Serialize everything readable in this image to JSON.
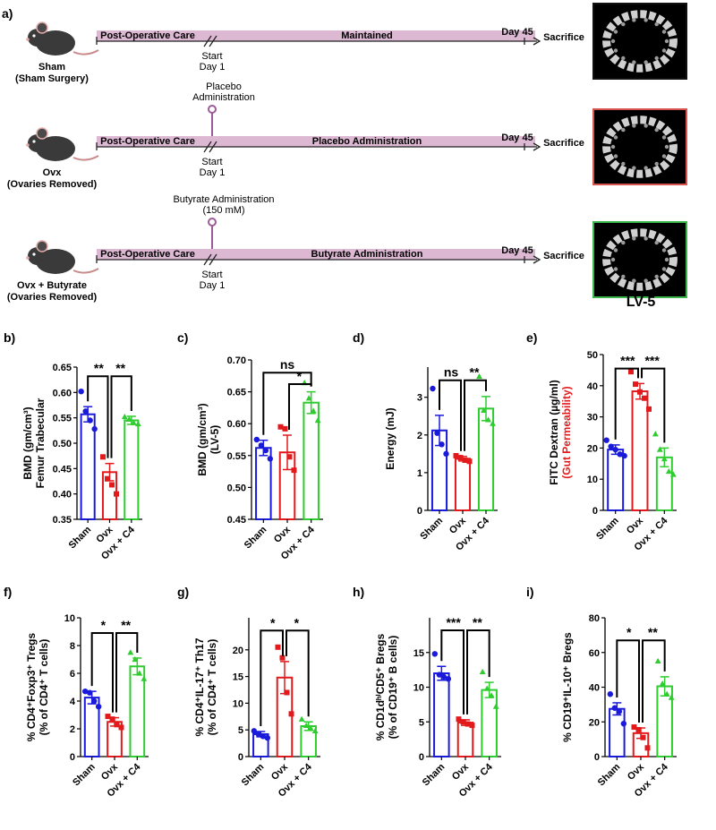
{
  "figure": {
    "panel_labels": [
      "a)",
      "b)",
      "c)",
      "d)",
      "e)",
      "f)",
      "g)",
      "h)",
      "i)"
    ],
    "timeline": {
      "rows": [
        {
          "group": "Sham",
          "group_sub": "(Sham Surgery)",
          "post_op": "Post-Operative Care",
          "treatment": "Maintained",
          "day_end": "Day 45",
          "sacrifice": "Sacrifice",
          "start": "Start",
          "start_day": "Day 1",
          "admin_top": "",
          "admin_sub": "",
          "frame_color": "#111111"
        },
        {
          "group": "Ovx",
          "group_sub": "(Ovaries Removed)",
          "post_op": "Post-Operative Care",
          "treatment": "Placebo Administration",
          "day_end": "Day 45",
          "sacrifice": "Sacrifice",
          "start": "Start",
          "start_day": "Day 1",
          "admin_top": "Placebo",
          "admin_sub": "Administration",
          "frame_color": "#d9534f"
        },
        {
          "group": "Ovx + Butyrate",
          "group_sub": "(Ovaries Removed)",
          "post_op": "Post-Operative Care",
          "treatment": "Butyrate Administration",
          "day_end": "Day 45",
          "sacrifice": "Sacrifice",
          "start": "Start",
          "start_day": "Day 1",
          "admin_top": "Butyrate Administration",
          "admin_sub": "(150 mM)",
          "frame_color": "#3cb54a"
        }
      ],
      "bone_label": "LV-5",
      "bar_color": "#dcb8d3",
      "marker_color": "#9b5c96"
    },
    "colors": {
      "Sham": "#1a1adb",
      "Ovx": "#e31a1c",
      "Ovx + C4": "#2ecc2e"
    }
  },
  "chart_data": [
    {
      "panel": "b)",
      "type": "bar",
      "categories": [
        "Sham",
        "Ovx",
        "Ovx + C4"
      ],
      "ylabel_lines": [
        "BMD (gm/cm³)",
        "Femur Trabecular"
      ],
      "ylim": [
        0.35,
        0.65
      ],
      "yticks": [
        "0.35",
        "0.40",
        "0.45",
        "0.50",
        "0.55",
        "0.60",
        "0.65"
      ],
      "values": [
        0.557,
        0.443,
        0.545
      ],
      "errors": [
        0.015,
        0.017,
        0.008
      ],
      "points": [
        [
          0.602,
          0.563,
          0.545,
          0.528
        ],
        [
          0.473,
          0.43,
          0.418,
          0.4
        ],
        [
          0.552,
          0.547,
          0.54,
          0.538
        ]
      ],
      "brackets": [
        {
          "from": 0,
          "to": 1,
          "y": 0.632,
          "label": "**"
        },
        {
          "from": 1,
          "to": 2,
          "y": 0.632,
          "label": "**"
        }
      ]
    },
    {
      "panel": "c)",
      "type": "bar",
      "categories": [
        "Sham",
        "Ovx",
        "Ovx + C4"
      ],
      "ylabel_lines": [
        "BMD (gm/cm³)",
        "(LV-5)"
      ],
      "ylim": [
        0.45,
        0.7
      ],
      "yticks": [
        "0.45",
        "0.50",
        "0.55",
        "0.60",
        "0.65",
        "0.70"
      ],
      "values": [
        0.562,
        0.555,
        0.633
      ],
      "errors": [
        0.012,
        0.027,
        0.017
      ],
      "points": [
        [
          0.575,
          0.566,
          0.558,
          0.545
        ],
        [
          0.595,
          0.592,
          0.548,
          0.527
        ],
        [
          0.664,
          0.64,
          0.62,
          0.605
        ]
      ],
      "brackets": [
        {
          "from": 0,
          "to": 2,
          "y": 0.68,
          "label": "ns"
        },
        {
          "from": 1,
          "to": 2,
          "y": 0.662,
          "label": "*"
        }
      ]
    },
    {
      "panel": "d)",
      "type": "bar",
      "categories": [
        "Sham",
        "Ovx",
        "Ovx + C4"
      ],
      "ylabel_lines": [
        "Energy (mJ)"
      ],
      "ylim": [
        0,
        3.8
      ],
      "yticks": [
        "0",
        "1",
        "2",
        "3"
      ],
      "values": [
        2.12,
        1.37,
        2.7
      ],
      "errors": [
        0.4,
        0.06,
        0.32
      ],
      "points": [
        [
          3.23,
          2.05,
          1.75,
          1.5
        ],
        [
          1.45,
          1.4,
          1.33,
          1.3
        ],
        [
          3.55,
          2.65,
          2.4,
          2.3
        ]
      ],
      "brackets": [
        {
          "from": 0,
          "to": 1,
          "y": 3.45,
          "label": "ns"
        },
        {
          "from": 1,
          "to": 2,
          "y": 3.45,
          "label": "**"
        }
      ]
    },
    {
      "panel": "e)",
      "type": "bar",
      "categories": [
        "Sham",
        "Ovx",
        "Ovx + C4"
      ],
      "ylabel_lines": [
        "FITC Dextran (µg/ml)"
      ],
      "ylabel2": "(Gut Permeability)",
      "ylabel2_color": "#e31a1c",
      "ylim": [
        0,
        50
      ],
      "yticks": [
        "0",
        "10",
        "20",
        "30",
        "40",
        "50"
      ],
      "values": [
        19.5,
        38.2,
        17.0
      ],
      "errors": [
        1.5,
        2.5,
        3.0
      ],
      "points": [
        [
          22.5,
          20.5,
          19.5,
          18.0,
          17.5
        ],
        [
          44.5,
          40.5,
          38.0,
          36.0,
          32.5
        ],
        [
          24.5,
          19.5,
          16.5,
          12.5,
          11.5
        ]
      ],
      "brackets": [
        {
          "from": 0,
          "to": 1,
          "y": 45.5,
          "label": "***"
        },
        {
          "from": 1,
          "to": 2,
          "y": 45.5,
          "label": "***"
        }
      ]
    },
    {
      "panel": "f)",
      "type": "bar",
      "categories": [
        "Sham",
        "Ovx",
        "Ovx + C4"
      ],
      "ylabel_lines": [
        "% CD4⁺Foxp3⁺ Tregs",
        "(% of CD4⁺ T cells)"
      ],
      "ylim": [
        0,
        10
      ],
      "yticks": [
        "0",
        "2",
        "4",
        "6",
        "8",
        "10"
      ],
      "values": [
        4.25,
        2.5,
        6.5
      ],
      "errors": [
        0.45,
        0.3,
        0.6
      ],
      "points": [
        [
          4.7,
          4.6,
          4.0,
          3.6
        ],
        [
          2.9,
          2.7,
          2.3,
          2.1
        ],
        [
          7.5,
          7.0,
          6.0,
          5.6
        ]
      ],
      "brackets": [
        {
          "from": 0,
          "to": 1,
          "y": 8.9,
          "label": "*"
        },
        {
          "from": 1,
          "to": 2,
          "y": 8.9,
          "label": "**"
        }
      ]
    },
    {
      "panel": "g)",
      "type": "bar",
      "categories": [
        "Sham",
        "Ovx",
        "Ovx + C4"
      ],
      "ylabel_lines": [
        "% CD4⁺IL-17⁺ Th17",
        "(% of CD4⁺ T cells)"
      ],
      "ylim": [
        0,
        26
      ],
      "yticks": [
        "0",
        "5",
        "10",
        "15",
        "20"
      ],
      "values": [
        4.2,
        14.8,
        5.7
      ],
      "errors": [
        0.5,
        3.0,
        0.8
      ],
      "points": [
        [
          4.8,
          4.2,
          3.8,
          3.5
        ],
        [
          20.5,
          18.5,
          12.0,
          8.0
        ],
        [
          7.0,
          5.8,
          5.3,
          4.8
        ]
      ],
      "brackets": [
        {
          "from": 0,
          "to": 1,
          "y": 23.6,
          "label": "*"
        },
        {
          "from": 1,
          "to": 2,
          "y": 23.6,
          "label": "*"
        }
      ]
    },
    {
      "panel": "h)",
      "type": "bar",
      "categories": [
        "Sham",
        "Ovx",
        "Ovx + C4"
      ],
      "ylabel_lines": [
        "% CD1dʰⁱCD5⁺ Bregs",
        "(% of CD19⁺ B cells)"
      ],
      "ylim": [
        0,
        20
      ],
      "yticks": [
        "0",
        "5",
        "10",
        "15"
      ],
      "values": [
        12.0,
        4.9,
        9.6
      ],
      "errors": [
        1.0,
        0.4,
        1.1
      ],
      "points": [
        [
          14.8,
          11.8,
          11.5,
          11.2
        ],
        [
          5.4,
          5.0,
          4.7,
          4.5
        ],
        [
          12.2,
          9.8,
          8.8,
          7.2
        ]
      ],
      "brackets": [
        {
          "from": 0,
          "to": 1,
          "y": 18.2,
          "label": "***"
        },
        {
          "from": 1,
          "to": 2,
          "y": 18.2,
          "label": "**"
        }
      ]
    },
    {
      "panel": "i)",
      "type": "bar",
      "categories": [
        "Sham",
        "Ovx",
        "Ovx + C4"
      ],
      "ylabel_lines": [
        "% CD19⁺IL-10⁺ Bregs"
      ],
      "ylim": [
        0,
        80
      ],
      "yticks": [
        "0",
        "20",
        "40",
        "60",
        "80"
      ],
      "values": [
        27.5,
        13.5,
        40.5
      ],
      "errors": [
        3.5,
        3.0,
        5.5
      ],
      "points": [
        [
          36.0,
          28.0,
          26.0,
          19.0
        ],
        [
          17.0,
          15.5,
          11.0,
          5.0
        ],
        [
          55.0,
          42.0,
          36.0,
          34.0
        ]
      ],
      "brackets": [
        {
          "from": 0,
          "to": 1,
          "y": 67,
          "label": "*"
        },
        {
          "from": 1,
          "to": 2,
          "y": 67,
          "label": "**"
        }
      ]
    }
  ]
}
